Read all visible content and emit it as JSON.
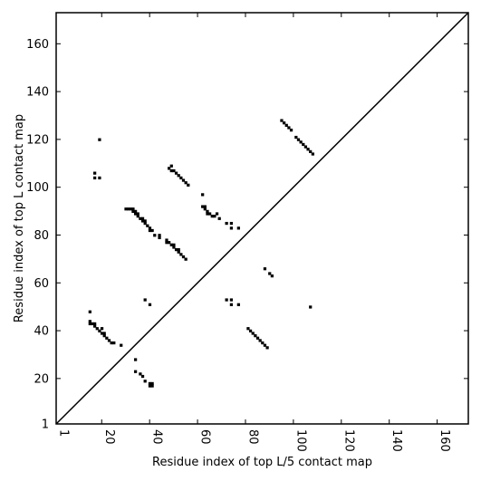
{
  "chart_data": {
    "type": "heatmap",
    "title": "",
    "xlabel": "Residue index of top L/5 contact map",
    "ylabel": "Residue index of top L contact map",
    "xlim": [
      1,
      173
    ],
    "ylim": [
      1,
      173
    ],
    "x_ticks": [
      1,
      20,
      40,
      60,
      80,
      100,
      120,
      140,
      160
    ],
    "y_ticks": [
      1,
      20,
      40,
      60,
      80,
      100,
      120,
      140,
      160
    ],
    "x_tick_rotation_deg": 90,
    "grid": false,
    "diagonal": true,
    "cell_color": "#000000",
    "cells_upper_top_L5": [
      [
        95,
        128
      ],
      [
        96,
        127
      ],
      [
        97,
        126
      ],
      [
        98,
        125
      ],
      [
        99,
        124
      ],
      [
        101,
        121
      ],
      [
        102,
        120
      ],
      [
        103,
        119
      ],
      [
        104,
        118
      ],
      [
        105,
        117
      ],
      [
        106,
        116
      ],
      [
        107,
        115
      ],
      [
        108,
        114
      ]
    ],
    "cells_lower_top_L5": [
      [
        81,
        41
      ],
      [
        82,
        40
      ],
      [
        83,
        39
      ],
      [
        84,
        38
      ],
      [
        85,
        37
      ],
      [
        86,
        36
      ],
      [
        87,
        35
      ],
      [
        88,
        34
      ],
      [
        89,
        33
      ]
    ],
    "cells_top_L_only": [
      [
        19,
        120
      ],
      [
        17,
        106
      ],
      [
        17,
        104
      ],
      [
        19,
        104
      ],
      [
        30,
        91
      ],
      [
        31,
        91
      ],
      [
        32,
        91
      ],
      [
        33,
        91
      ],
      [
        33,
        90
      ],
      [
        34,
        90
      ],
      [
        34,
        89
      ],
      [
        35,
        89
      ],
      [
        35,
        88
      ],
      [
        36,
        87
      ],
      [
        37,
        87
      ],
      [
        37,
        86
      ],
      [
        38,
        86
      ],
      [
        38,
        85
      ],
      [
        39,
        84
      ],
      [
        40,
        83
      ],
      [
        40,
        82
      ],
      [
        41,
        82
      ],
      [
        42,
        80
      ],
      [
        44,
        79
      ],
      [
        44,
        80
      ],
      [
        47,
        78
      ],
      [
        47,
        77
      ],
      [
        48,
        77
      ],
      [
        49,
        76
      ],
      [
        50,
        76
      ],
      [
        50,
        75
      ],
      [
        51,
        74
      ],
      [
        52,
        74
      ],
      [
        52,
        73
      ],
      [
        53,
        72
      ],
      [
        54,
        71
      ],
      [
        55,
        70
      ],
      [
        48,
        108
      ],
      [
        49,
        109
      ],
      [
        49,
        107
      ],
      [
        50,
        107
      ],
      [
        51,
        106
      ],
      [
        52,
        105
      ],
      [
        53,
        104
      ],
      [
        54,
        103
      ],
      [
        55,
        102
      ],
      [
        56,
        101
      ],
      [
        62,
        97
      ],
      [
        62,
        92
      ],
      [
        63,
        92
      ],
      [
        63,
        91
      ],
      [
        64,
        90
      ],
      [
        64,
        89
      ],
      [
        65,
        89
      ],
      [
        66,
        88
      ],
      [
        67,
        88
      ],
      [
        68,
        89
      ],
      [
        69,
        87
      ],
      [
        72,
        85
      ],
      [
        74,
        85
      ],
      [
        74,
        83
      ],
      [
        77,
        83
      ],
      [
        15,
        48
      ],
      [
        15,
        44
      ],
      [
        15,
        43
      ],
      [
        16,
        43
      ],
      [
        17,
        43
      ],
      [
        17,
        42
      ],
      [
        18,
        41
      ],
      [
        19,
        40
      ],
      [
        20,
        41
      ],
      [
        20,
        39
      ],
      [
        21,
        39
      ],
      [
        21,
        38
      ],
      [
        22,
        37
      ],
      [
        23,
        36
      ],
      [
        24,
        35
      ],
      [
        25,
        35
      ],
      [
        28,
        34
      ],
      [
        34,
        28
      ],
      [
        34,
        23
      ],
      [
        36,
        22
      ],
      [
        37,
        21
      ],
      [
        38,
        19
      ],
      [
        40,
        18
      ],
      [
        41,
        18
      ],
      [
        40,
        17
      ],
      [
        41,
        17
      ],
      [
        38,
        53
      ],
      [
        40,
        51
      ],
      [
        72,
        53
      ],
      [
        74,
        53
      ],
      [
        74,
        51
      ],
      [
        77,
        51
      ],
      [
        88,
        66
      ],
      [
        90,
        64
      ],
      [
        91,
        63
      ],
      [
        107,
        50
      ]
    ]
  }
}
